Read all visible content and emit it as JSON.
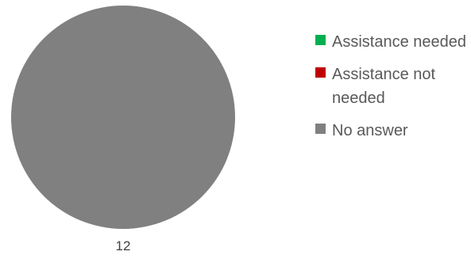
{
  "chart_data": {
    "type": "pie",
    "slices": [
      {
        "label": "Assistance needed",
        "value": 0,
        "color": "#00b050"
      },
      {
        "label": "Assistance not needed",
        "value": 0,
        "color": "#c00000"
      },
      {
        "label": "No answer",
        "value": 12,
        "color": "#808080"
      }
    ],
    "data_labels": [
      "12"
    ],
    "legend": {
      "position": "right",
      "entries": [
        {
          "label": "Assistance needed",
          "color": "#00b050"
        },
        {
          "label": "Assistance not needed",
          "color": "#c00000"
        },
        {
          "label": "No answer",
          "color": "#808080"
        }
      ]
    }
  }
}
